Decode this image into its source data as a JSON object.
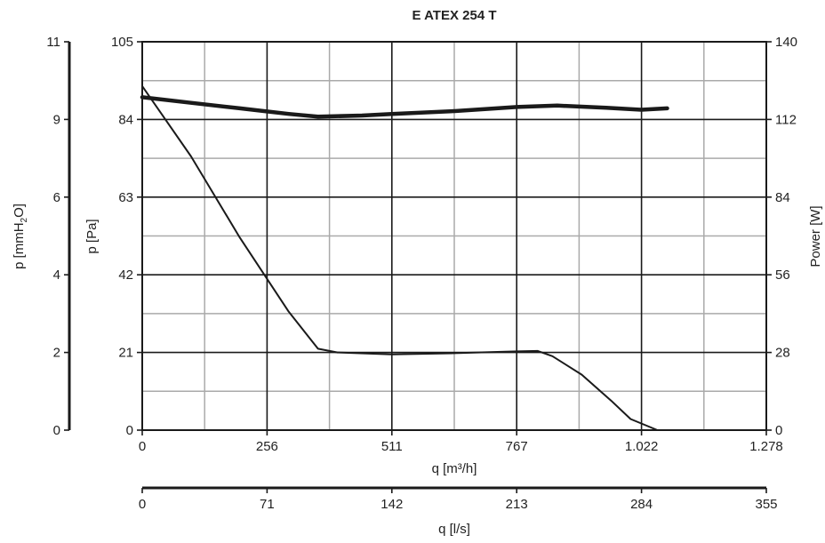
{
  "chart_data": {
    "type": "line",
    "title": "E ATEX 254 T",
    "x_axes": {
      "primary": {
        "label": "q [m³/h]",
        "ticks": [
          "0",
          "256",
          "511",
          "767",
          "1.022",
          "1.278"
        ],
        "range": [
          0,
          1278
        ]
      },
      "secondary": {
        "label": "q [l/s]",
        "ticks": [
          "0",
          "71",
          "142",
          "213",
          "284",
          "355"
        ],
        "range": [
          0,
          355
        ]
      }
    },
    "y_axes": {
      "mmh2o": {
        "label_main": "p [mmH",
        "label_sub": "2",
        "label_end": "O]",
        "ticks": [
          "0",
          "2",
          "4",
          "6",
          "9",
          "11"
        ]
      },
      "pa": {
        "label": "p [Pa]",
        "ticks": [
          "0",
          "21",
          "42",
          "63",
          "84",
          "105"
        ],
        "range": [
          0,
          105
        ]
      },
      "power": {
        "label": "Power [W]",
        "ticks": [
          "0",
          "28",
          "56",
          "84",
          "112",
          "140"
        ],
        "range": [
          0,
          140
        ]
      }
    },
    "grid": true,
    "series": [
      {
        "axis": "pa",
        "values": [
          [
            0,
            93
          ],
          [
            100,
            74
          ],
          [
            200,
            52
          ],
          [
            300,
            32
          ],
          [
            360,
            22
          ],
          [
            400,
            21
          ],
          [
            511,
            20.5
          ],
          [
            640,
            20.8
          ],
          [
            767,
            21.3
          ],
          [
            810,
            21.4
          ],
          [
            840,
            20
          ],
          [
            900,
            15
          ],
          [
            960,
            8
          ],
          [
            1000,
            3
          ],
          [
            1055,
            0
          ]
        ]
      },
      {
        "axis": "power",
        "values": [
          [
            0,
            120
          ],
          [
            100,
            118
          ],
          [
            200,
            116
          ],
          [
            300,
            114
          ],
          [
            360,
            113
          ],
          [
            450,
            113.4
          ],
          [
            511,
            114
          ],
          [
            640,
            115
          ],
          [
            767,
            116.5
          ],
          [
            850,
            117
          ],
          [
            950,
            116.2
          ],
          [
            1022,
            115.5
          ],
          [
            1075,
            116
          ]
        ]
      }
    ]
  }
}
